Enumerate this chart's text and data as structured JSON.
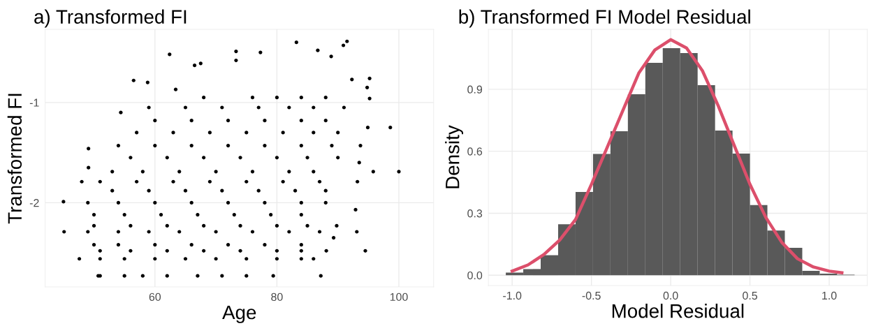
{
  "chart_data": [
    {
      "type": "scatter",
      "title": "a) Transformed FI",
      "xlabel": "Age",
      "ylabel": "Transformed FI",
      "color": "#000000",
      "marker": "circle",
      "grid": true,
      "xlim": [
        42,
        105.7
      ],
      "xticks": [
        60,
        80,
        100
      ],
      "ylim": [
        -2.84,
        -0.27
      ],
      "yticks": [
        -2,
        -1
      ],
      "x": [
        83.2,
        91.5,
        90.9,
        73.3,
        77.3,
        62.4,
        86.7,
        73.3,
        66.5,
        67.5,
        88.9,
        95.2,
        94.8,
        95.2,
        94.9,
        98.6,
        100.0,
        95.8,
        93.7,
        93.5,
        93.2,
        92.9,
        93.1,
        94.5,
        89.3,
        89.8,
        88.1,
        87.2,
        79.4,
        50.7,
        47.6,
        45.1,
        45.0,
        48.0,
        49.1,
        49.1,
        54.4,
        56.5,
        58.8,
        63.4,
        92.3,
        51,
        55,
        58,
        62,
        67,
        71,
        75,
        51,
        55,
        60,
        65,
        70,
        75,
        80,
        84,
        86,
        51,
        56,
        62,
        68,
        74,
        80,
        84,
        50,
        54,
        60,
        66,
        72,
        78,
        84,
        49,
        54,
        59,
        64,
        70,
        76,
        82,
        87,
        50,
        56,
        62,
        68,
        74,
        80,
        85,
        50,
        55,
        61,
        67,
        73,
        79,
        84,
        49,
        54,
        60,
        66,
        72,
        78,
        84,
        88,
        53,
        59,
        65,
        71,
        77,
        83,
        88,
        51,
        57,
        63,
        69,
        75,
        81,
        87,
        53,
        58,
        64,
        70,
        76,
        82,
        86,
        56,
        62,
        68,
        74,
        80,
        85,
        90,
        54,
        60,
        66,
        72,
        78,
        84,
        89,
        57,
        63,
        69,
        75,
        81,
        86,
        90,
        60,
        66,
        72,
        78,
        84,
        88,
        59,
        65,
        71,
        77,
        82,
        86,
        91,
        68,
        76,
        80,
        84,
        88
      ],
      "values": [
        -0.4,
        -0.39,
        -0.43,
        -0.49,
        -0.5,
        -0.52,
        -0.48,
        -0.58,
        -0.63,
        -0.61,
        -0.54,
        -0.76,
        -0.85,
        -0.96,
        -1.25,
        -1.25,
        -1.69,
        -1.69,
        -1.43,
        -1.6,
        -1.79,
        -2.07,
        -2.29,
        -2.48,
        -2.35,
        -2.23,
        -2.48,
        -2.73,
        -2.73,
        -2.73,
        -2.56,
        -2.29,
        -1.99,
        -1.79,
        -1.65,
        -1.46,
        -1.1,
        -0.78,
        -0.8,
        -0.87,
        -0.77,
        -2.73,
        -2.73,
        -2.73,
        -2.73,
        -2.73,
        -2.73,
        -2.73,
        -2.56,
        -2.56,
        -2.56,
        -2.56,
        -2.56,
        -2.56,
        -2.56,
        -2.56,
        -2.56,
        -2.48,
        -2.48,
        -2.48,
        -2.48,
        -2.48,
        -2.48,
        -2.48,
        -2.42,
        -2.42,
        -2.42,
        -2.42,
        -2.42,
        -2.42,
        -2.42,
        -2.29,
        -2.29,
        -2.29,
        -2.29,
        -2.29,
        -2.29,
        -2.29,
        -2.29,
        -2.23,
        -2.23,
        -2.23,
        -2.23,
        -2.23,
        -2.23,
        -2.23,
        -2.12,
        -2.12,
        -2.12,
        -2.12,
        -2.12,
        -2.12,
        -2.12,
        -2.0,
        -2.0,
        -2.0,
        -2.0,
        -2.0,
        -2.0,
        -2.0,
        -2.0,
        -1.88,
        -1.88,
        -1.88,
        -1.88,
        -1.88,
        -1.88,
        -1.88,
        -1.79,
        -1.79,
        -1.79,
        -1.79,
        -1.79,
        -1.79,
        -1.79,
        -1.69,
        -1.69,
        -1.69,
        -1.69,
        -1.69,
        -1.69,
        -1.69,
        -1.55,
        -1.55,
        -1.55,
        -1.55,
        -1.55,
        -1.55,
        -1.55,
        -1.43,
        -1.43,
        -1.43,
        -1.43,
        -1.43,
        -1.43,
        -1.43,
        -1.3,
        -1.3,
        -1.3,
        -1.3,
        -1.3,
        -1.3,
        -1.3,
        -1.18,
        -1.18,
        -1.18,
        -1.18,
        -1.18,
        -1.18,
        -1.05,
        -1.05,
        -1.05,
        -1.05,
        -1.05,
        -1.05,
        -1.05,
        -0.95,
        -0.95,
        -0.95,
        -0.95,
        -0.95
      ]
    },
    {
      "type": "histogram",
      "title": "b) Transformed FI Model Residual",
      "xlabel": "Model Residual",
      "ylabel": "Density",
      "color": "#595959",
      "grid": true,
      "xlim": [
        -1.15,
        1.24
      ],
      "xticks": [
        {
          "value": -1.0,
          "label": "-1.0"
        },
        {
          "value": -0.5,
          "label": "-0.5"
        },
        {
          "value": 0,
          "label": "0.0"
        },
        {
          "value": 0.5,
          "label": "0.5"
        },
        {
          "value": 1.0,
          "label": "1.0"
        }
      ],
      "ylim": [
        -0.05,
        1.19
      ],
      "yticks": [
        {
          "value": 0,
          "label": "0.0"
        },
        0.3,
        0.6,
        0.9
      ],
      "bins": [
        -1.04,
        -0.93,
        -0.82,
        -0.71,
        -0.6,
        -0.49,
        -0.38,
        -0.27,
        -0.16,
        -0.05,
        0.06,
        0.17,
        0.28,
        0.39,
        0.5,
        0.61,
        0.72,
        0.83,
        0.94,
        1.05,
        1.16
      ],
      "values": [
        0.013,
        0.03,
        0.097,
        0.247,
        0.403,
        0.587,
        0.697,
        0.876,
        1.028,
        1.099,
        1.075,
        0.92,
        0.7,
        0.589,
        0.34,
        0.216,
        0.133,
        0.021,
        0.008,
        0.003
      ],
      "series": [
        {
          "type": "line",
          "color": "#dc4f6b",
          "x": [
            -1.0,
            -0.9,
            -0.8,
            -0.7,
            -0.6,
            -0.5,
            -0.4,
            -0.3,
            -0.2,
            -0.1,
            0.0,
            0.1,
            0.2,
            0.3,
            0.4,
            0.5,
            0.6,
            0.7,
            0.8,
            0.9,
            1.0,
            1.08
          ],
          "values": [
            0.02,
            0.05,
            0.1,
            0.17,
            0.27,
            0.44,
            0.62,
            0.8,
            0.98,
            1.09,
            1.14,
            1.1,
            0.99,
            0.82,
            0.63,
            0.44,
            0.28,
            0.16,
            0.08,
            0.04,
            0.02,
            0.012
          ]
        }
      ]
    }
  ]
}
